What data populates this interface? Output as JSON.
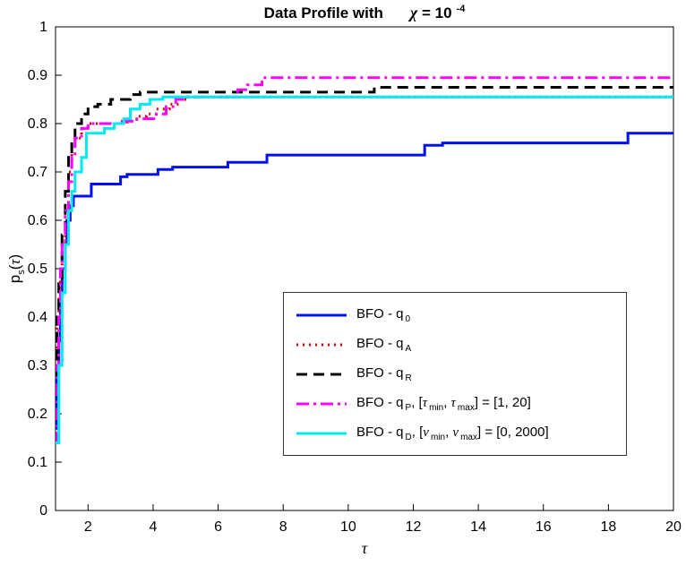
{
  "title": {
    "main": "Data Profile with",
    "chi": "χ",
    "eq": " = 10",
    "exp": "-4"
  },
  "xlabel": "τ",
  "ylabel": {
    "base": "p",
    "sub": "s",
    "open": "(",
    "tau": "τ",
    "close": ")"
  },
  "chart_data": {
    "type": "line",
    "step": true,
    "title": "Data Profile with χ = 10^-4",
    "xlabel": "τ",
    "ylabel": "p_s(τ)",
    "xlim": [
      1,
      20
    ],
    "ylim": [
      0,
      1
    ],
    "xticks": [
      "2",
      "4",
      "6",
      "8",
      "10",
      "12",
      "14",
      "16",
      "18",
      "20"
    ],
    "yticks": [
      "0",
      "0.1",
      "0.2",
      "0.3",
      "0.4",
      "0.5",
      "0.6",
      "0.7",
      "0.8",
      "0.9",
      "1"
    ],
    "grid": false,
    "legend_position": "inside-center-right",
    "series": [
      {
        "name": "BFO - q_0",
        "color": "#0010ee",
        "dash": "solid",
        "label_segments": [
          {
            "t": "BFO - q"
          },
          {
            "t": "0",
            "sub": true
          }
        ],
        "steps": [
          [
            1,
            0.17
          ],
          [
            1.05,
            0.28
          ],
          [
            1.1,
            0.35
          ],
          [
            1.15,
            0.45
          ],
          [
            1.2,
            0.5
          ],
          [
            1.3,
            0.55
          ],
          [
            1.35,
            0.6
          ],
          [
            1.45,
            0.63
          ],
          [
            1.55,
            0.65
          ],
          [
            2.1,
            0.675
          ],
          [
            3.0,
            0.69
          ],
          [
            3.2,
            0.695
          ],
          [
            4.15,
            0.705
          ],
          [
            4.6,
            0.71
          ],
          [
            6.3,
            0.72
          ],
          [
            7.5,
            0.735
          ],
          [
            12.35,
            0.755
          ],
          [
            12.9,
            0.76
          ],
          [
            18.6,
            0.78
          ]
        ]
      },
      {
        "name": "BFO - q_A",
        "color": "#dd0000",
        "dash": "dotted",
        "label_segments": [
          {
            "t": "BFO - q"
          },
          {
            "t": "A",
            "sub": true
          }
        ],
        "steps": [
          [
            1,
            0.3
          ],
          [
            1.05,
            0.38
          ],
          [
            1.1,
            0.44
          ],
          [
            1.15,
            0.5
          ],
          [
            1.2,
            0.55
          ],
          [
            1.3,
            0.62
          ],
          [
            1.4,
            0.7
          ],
          [
            1.5,
            0.75
          ],
          [
            1.6,
            0.77
          ],
          [
            1.8,
            0.79
          ],
          [
            2.0,
            0.8
          ],
          [
            3.2,
            0.805
          ],
          [
            3.5,
            0.815
          ],
          [
            3.8,
            0.82
          ],
          [
            4.1,
            0.83
          ],
          [
            4.5,
            0.84
          ],
          [
            4.8,
            0.85
          ],
          [
            5.1,
            0.855
          ]
        ]
      },
      {
        "name": "BFO - q_R",
        "color": "#000000",
        "dash": "dashed",
        "label_segments": [
          {
            "t": "BFO - q"
          },
          {
            "t": "R",
            "sub": true
          }
        ],
        "steps": [
          [
            1,
            0.28
          ],
          [
            1.05,
            0.4
          ],
          [
            1.1,
            0.48
          ],
          [
            1.2,
            0.57
          ],
          [
            1.3,
            0.66
          ],
          [
            1.4,
            0.73
          ],
          [
            1.5,
            0.77
          ],
          [
            1.6,
            0.8
          ],
          [
            1.8,
            0.82
          ],
          [
            2.0,
            0.835
          ],
          [
            2.3,
            0.84
          ],
          [
            2.7,
            0.85
          ],
          [
            3.3,
            0.86
          ],
          [
            3.6,
            0.865
          ],
          [
            10.8,
            0.875
          ]
        ]
      },
      {
        "name": "BFO - q_P, [τ_min, τ_max] = [1, 20]",
        "color": "#ff00ff",
        "dash": "dashdot",
        "label_segments": [
          {
            "t": "BFO - q"
          },
          {
            "t": "P",
            "sub": true
          },
          {
            "t": ",  ["
          },
          {
            "t": "τ",
            "gk": true
          },
          {
            "t": "min",
            "sub": true
          },
          {
            "t": ", "
          },
          {
            "t": "τ",
            "gk": true
          },
          {
            "t": "max",
            "sub": true
          },
          {
            "t": "] = [1, 20]"
          }
        ],
        "steps": [
          [
            1,
            0.14
          ],
          [
            1.05,
            0.3
          ],
          [
            1.1,
            0.4
          ],
          [
            1.15,
            0.5
          ],
          [
            1.2,
            0.55
          ],
          [
            1.3,
            0.62
          ],
          [
            1.4,
            0.68
          ],
          [
            1.5,
            0.73
          ],
          [
            1.6,
            0.77
          ],
          [
            1.8,
            0.79
          ],
          [
            2.0,
            0.8
          ],
          [
            3.0,
            0.805
          ],
          [
            3.5,
            0.81
          ],
          [
            4.1,
            0.82
          ],
          [
            4.4,
            0.835
          ],
          [
            4.7,
            0.85
          ],
          [
            5.0,
            0.855
          ],
          [
            6.6,
            0.87
          ],
          [
            6.9,
            0.88
          ],
          [
            7.35,
            0.895
          ]
        ]
      },
      {
        "name": "BFO - q_D, [ν_min, ν_max] = [0, 2000]",
        "color": "#00eaf2",
        "dash": "solid",
        "label_segments": [
          {
            "t": "BFO - q"
          },
          {
            "t": "D",
            "sub": true
          },
          {
            "t": ",  ["
          },
          {
            "t": "ν",
            "gk": true
          },
          {
            "t": "min",
            "sub": true
          },
          {
            "t": ", "
          },
          {
            "t": "ν",
            "gk": true
          },
          {
            "t": "max",
            "sub": true
          },
          {
            "t": "] = [0, 2000]"
          }
        ],
        "steps": [
          [
            1,
            0.14
          ],
          [
            1.1,
            0.3
          ],
          [
            1.2,
            0.45
          ],
          [
            1.3,
            0.55
          ],
          [
            1.4,
            0.62
          ],
          [
            1.5,
            0.66
          ],
          [
            1.6,
            0.7
          ],
          [
            1.8,
            0.73
          ],
          [
            1.95,
            0.78
          ],
          [
            2.5,
            0.79
          ],
          [
            2.8,
            0.8
          ],
          [
            3.1,
            0.81
          ],
          [
            3.3,
            0.83
          ],
          [
            3.6,
            0.84
          ],
          [
            3.9,
            0.85
          ],
          [
            4.3,
            0.855
          ]
        ]
      }
    ]
  }
}
